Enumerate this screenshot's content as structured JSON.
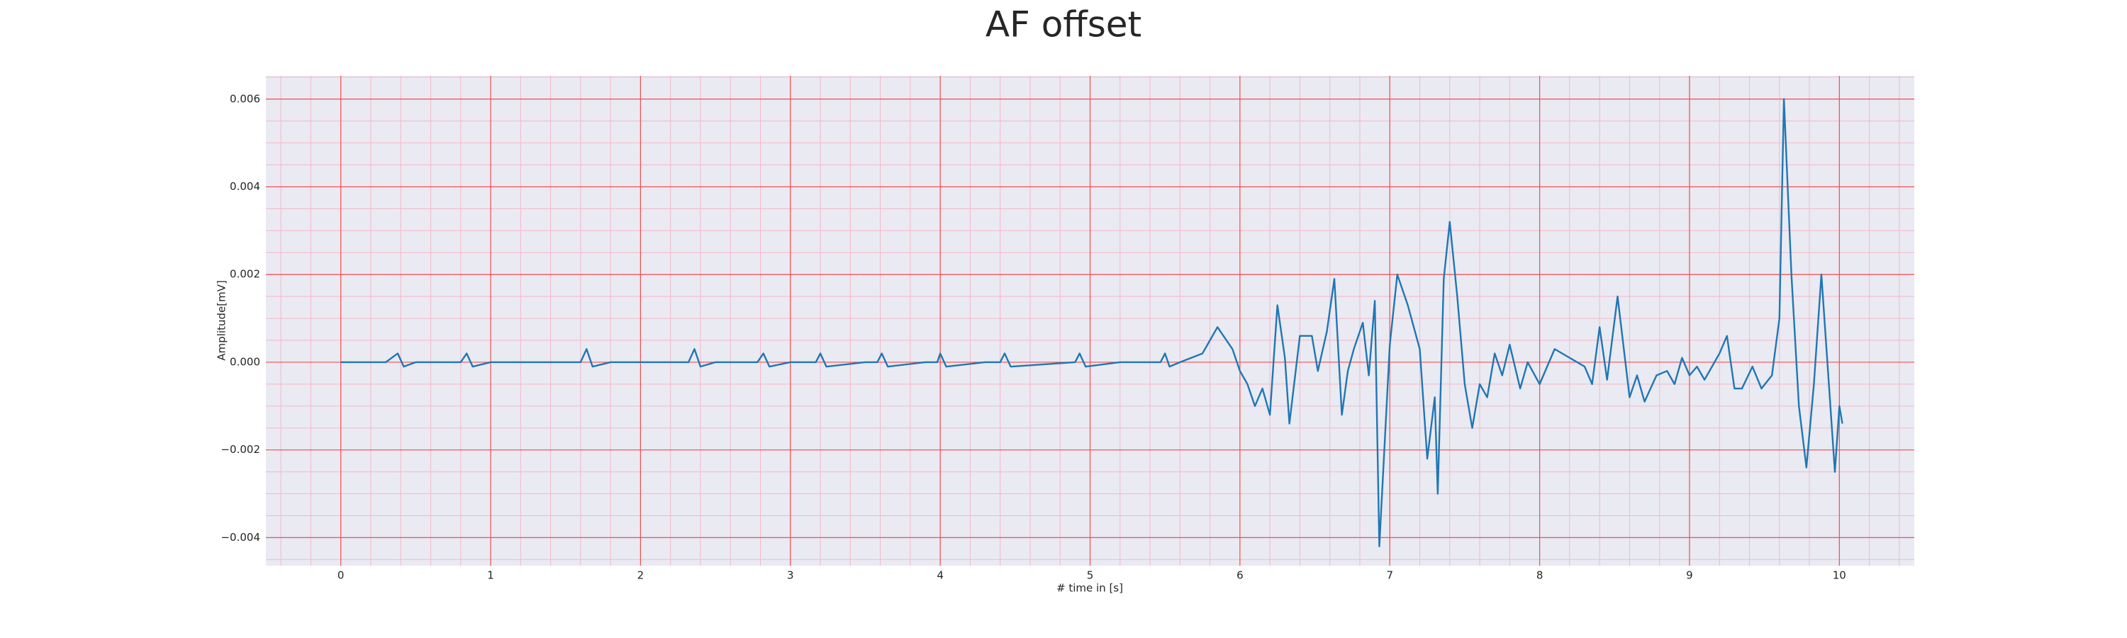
{
  "chart_data": {
    "type": "line",
    "title": "AF offset",
    "x_label": "# time in [s]",
    "y_label": "Amplitude[mV]",
    "x": [
      0,
      0.3,
      0.38,
      0.42,
      0.5,
      0.8,
      0.84,
      0.88,
      1.0,
      1.6,
      1.64,
      1.68,
      1.8,
      2.32,
      2.36,
      2.4,
      2.5,
      2.78,
      2.82,
      2.86,
      3.0,
      3.17,
      3.2,
      3.24,
      3.5,
      3.58,
      3.61,
      3.65,
      3.9,
      3.98,
      4.0,
      4.04,
      4.3,
      4.4,
      4.43,
      4.47,
      4.9,
      4.93,
      4.97,
      5.2,
      5.47,
      5.5,
      5.53,
      5.6,
      5.75,
      5.85,
      5.95,
      6.0,
      6.05,
      6.1,
      6.15,
      6.2,
      6.25,
      6.3,
      6.33,
      6.4,
      6.48,
      6.52,
      6.58,
      6.63,
      6.68,
      6.72,
      6.76,
      6.82,
      6.86,
      6.9,
      6.93,
      7.0,
      7.05,
      7.12,
      7.2,
      7.25,
      7.3,
      7.32,
      7.36,
      7.4,
      7.45,
      7.5,
      7.55,
      7.6,
      7.65,
      7.7,
      7.75,
      7.8,
      7.87,
      7.92,
      8.0,
      8.1,
      8.2,
      8.3,
      8.35,
      8.4,
      8.45,
      8.52,
      8.6,
      8.65,
      8.7,
      8.78,
      8.85,
      8.9,
      8.95,
      9.0,
      9.05,
      9.1,
      9.2,
      9.25,
      9.3,
      9.35,
      9.42,
      9.48,
      9.55,
      9.6,
      9.63,
      9.68,
      9.73,
      9.78,
      9.83,
      9.88,
      9.93,
      9.97,
      10.0,
      10.02
    ],
    "series": [
      {
        "name": "AF offset",
        "color": "#1f77b4",
        "values": [
          0,
          0,
          0.0002,
          -0.0001,
          0,
          0,
          0.0002,
          -0.0001,
          0,
          0,
          0.0003,
          -0.0001,
          0,
          0,
          0.0003,
          -0.0001,
          0,
          0,
          0.0002,
          -0.0001,
          0,
          0,
          0.0002,
          -0.0001,
          0,
          0,
          0.0002,
          -0.0001,
          0,
          0,
          0.0002,
          -0.0001,
          0,
          0,
          0.0002,
          -0.0001,
          0,
          0.0002,
          -0.0001,
          0,
          0,
          0.0002,
          -0.0001,
          0,
          0.0002,
          0.0008,
          0.0003,
          -0.0002,
          -0.0005,
          -0.001,
          -0.0006,
          -0.0012,
          0.0013,
          0.0001,
          -0.0014,
          0.0006,
          0.0006,
          -0.0002,
          0.0007,
          0.0019,
          -0.0012,
          -0.0002,
          0.0003,
          0.0009,
          -0.0003,
          0.0014,
          -0.0042,
          0.0004,
          0.002,
          0.0013,
          0.0003,
          -0.0022,
          -0.0008,
          -0.003,
          0.0019,
          0.0032,
          0.0015,
          -0.0005,
          -0.0015,
          -0.0005,
          -0.0008,
          0.0002,
          -0.0003,
          0.0004,
          -0.0006,
          0,
          -0.0005,
          0.0003,
          0.0001,
          -0.0001,
          -0.0005,
          0.0008,
          -0.0004,
          0.0015,
          -0.0008,
          -0.0003,
          -0.0009,
          -0.0003,
          -0.0002,
          -0.0005,
          0.0001,
          -0.0003,
          -0.0001,
          -0.0004,
          0.0002,
          0.0006,
          -0.0006,
          -0.0006,
          -0.0001,
          -0.0006,
          -0.0003,
          0.001,
          0.006,
          0.002,
          -0.001,
          -0.0024,
          -0.0005,
          0.002,
          -0.0005,
          -0.0025,
          -0.001,
          -0.0014
        ]
      }
    ],
    "xlim": [
      -0.5,
      10.5
    ],
    "xticks": [
      0,
      1,
      2,
      3,
      4,
      5,
      6,
      7,
      8,
      9,
      10
    ],
    "ylim": [
      -0.00464,
      0.00653
    ],
    "yticks": [
      {
        "value": -0.004,
        "label": "−0.004"
      },
      {
        "value": -0.002,
        "label": "−0.002"
      },
      {
        "value": 0,
        "label": "0.000"
      },
      0.002,
      0.004,
      0.006
    ],
    "grid": true,
    "minor_grid": true
  }
}
